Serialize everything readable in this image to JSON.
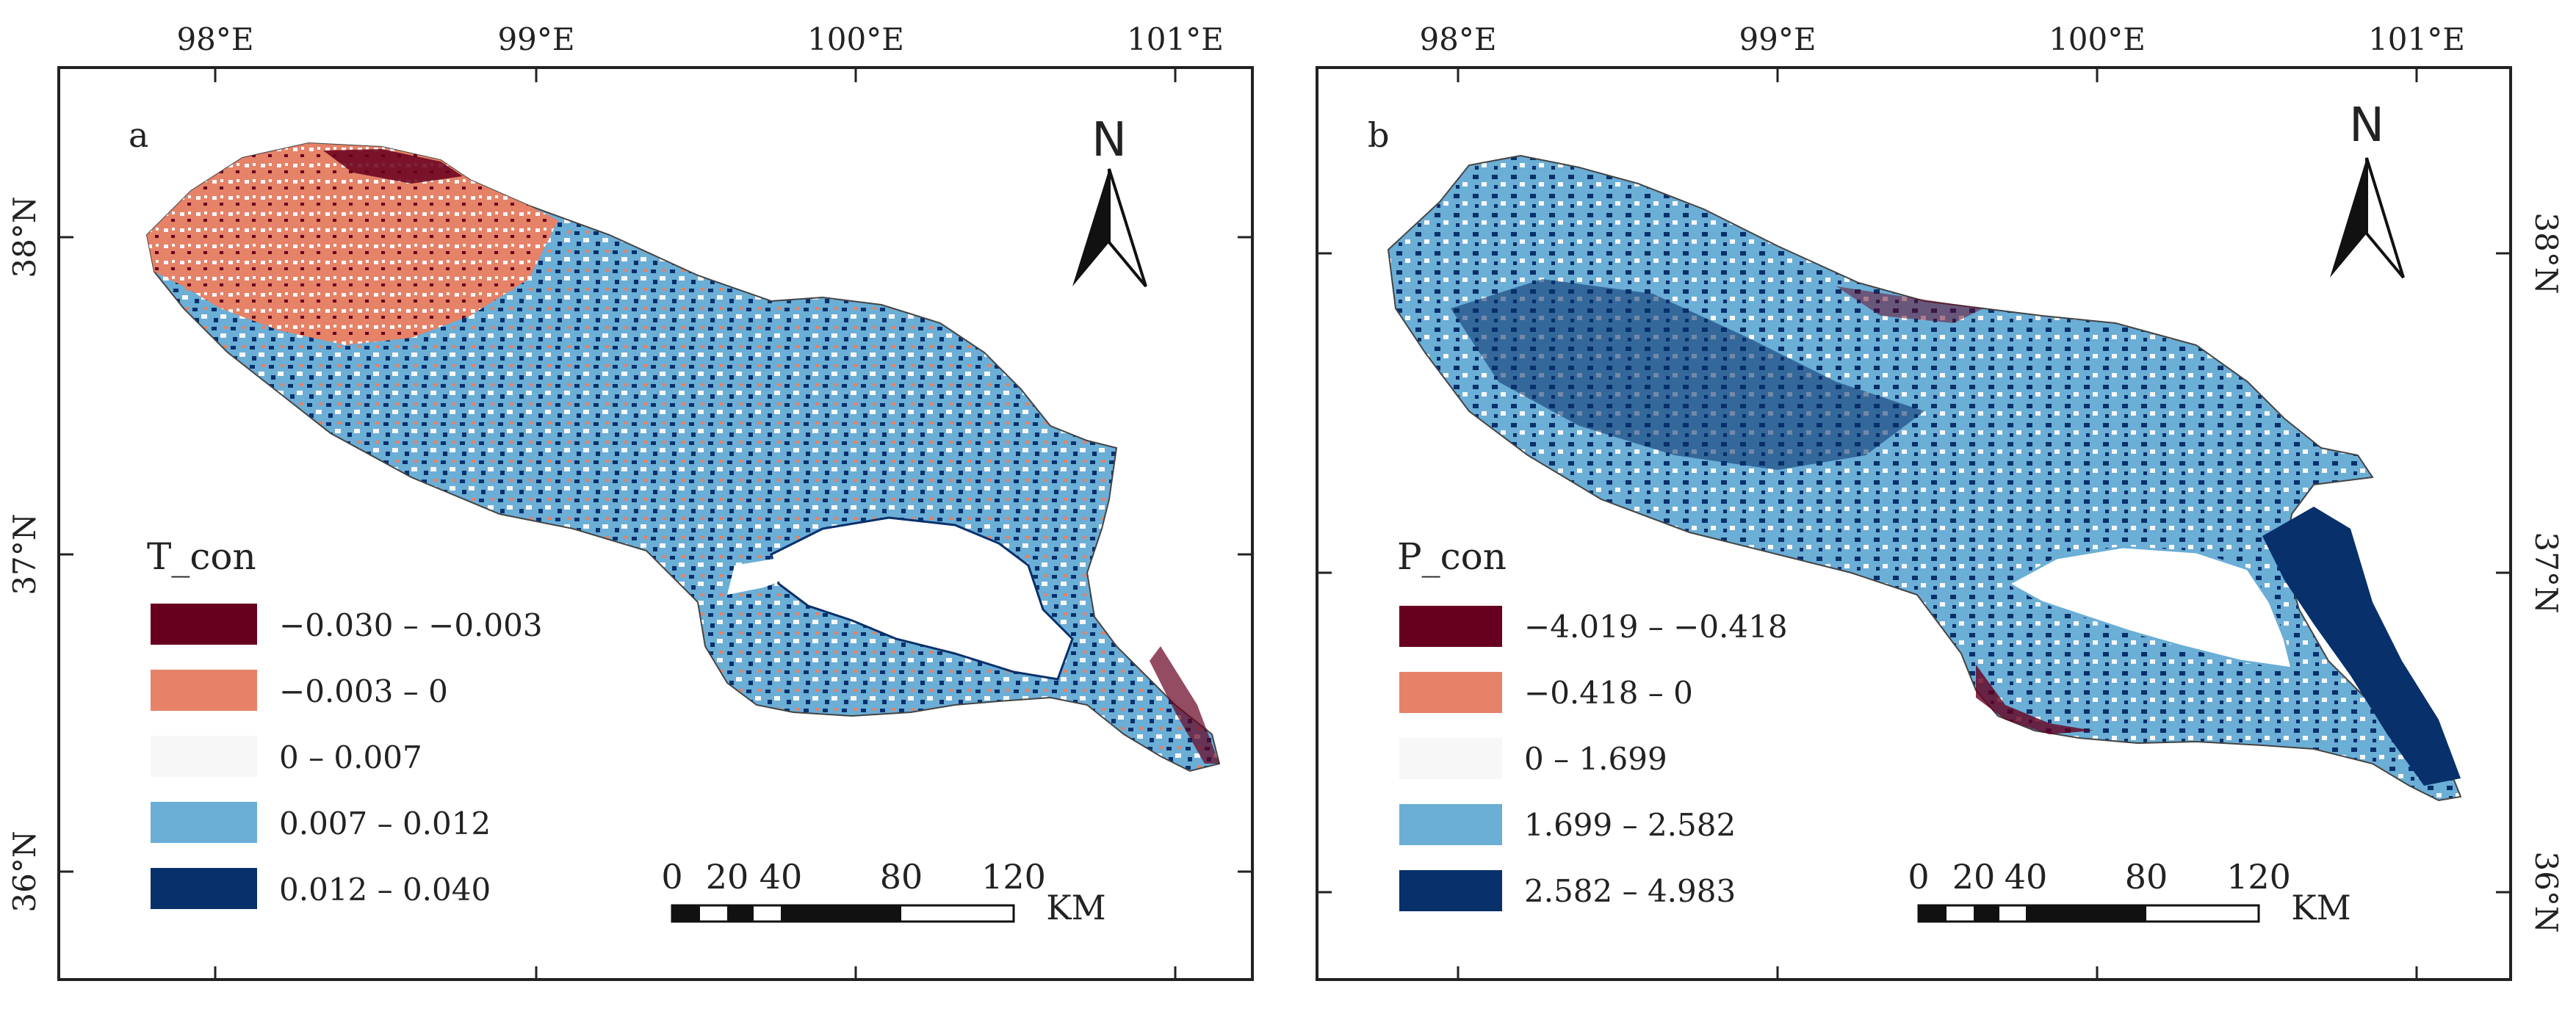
{
  "figure": {
    "lon_ticks": [
      "98°E",
      "99°E",
      "100°E",
      "101°E"
    ],
    "lat_ticks": [
      "38°N",
      "37°N",
      "36°N"
    ],
    "north_label": "N",
    "scale_bar": {
      "ticks": [
        "0",
        "20",
        "40",
        "80",
        "120"
      ],
      "unit": "KM"
    },
    "colors": {
      "class1": "#67001f",
      "class2": "#e58267",
      "class3": "#f7f7f7",
      "class4": "#6baed6",
      "class5": "#08306b",
      "frame": "#222222"
    }
  },
  "panels": [
    {
      "label": "a",
      "legend_title": "T_con",
      "classes": [
        "−0.030 – −0.003",
        "−0.003 – 0",
        "0 – 0.007",
        "0.007 – 0.012",
        "0.012 – 0.040"
      ]
    },
    {
      "label": "b",
      "legend_title": "P_con",
      "classes": [
        "−4.019 – −0.418",
        "−0.418 – 0",
        "0 – 1.699",
        "1.699 – 2.582",
        "2.582 – 4.983"
      ]
    }
  ]
}
